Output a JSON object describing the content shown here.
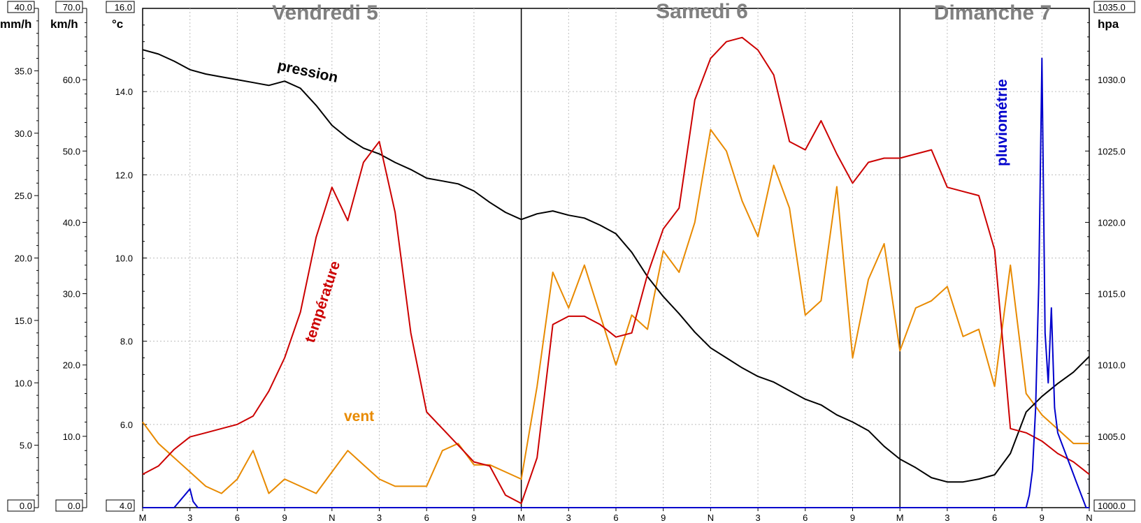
{
  "chart_data": {
    "type": "line",
    "title": "",
    "days": [
      "Vendredi 5",
      "Samedi 6",
      "Dimanche 7"
    ],
    "x_ticks": [
      "M",
      "3",
      "6",
      "9",
      "N",
      "3",
      "6",
      "9",
      "M",
      "3",
      "6",
      "9",
      "N",
      "3",
      "6",
      "9",
      "M",
      "3",
      "6",
      "9",
      "N"
    ],
    "x_hours_range": [
      0,
      60
    ],
    "axes": {
      "rain": {
        "unit": "mm/h",
        "range": [
          0,
          40
        ],
        "ticks": [
          "40.0",
          "35.0",
          "30.0",
          "25.0",
          "20.0",
          "15.0",
          "10.0",
          "5.0",
          "0.0"
        ]
      },
      "wind": {
        "unit": "km/h",
        "range": [
          0,
          70
        ],
        "ticks": [
          "70.0",
          "60.0",
          "50.0",
          "40.0",
          "30.0",
          "20.0",
          "10.0",
          "0.0"
        ]
      },
      "temperature": {
        "unit": "°c",
        "range": [
          4,
          16
        ],
        "ticks": [
          "16.0",
          "14.0",
          "12.0",
          "10.0",
          "8.0",
          "6.0",
          "4.0"
        ]
      },
      "pressure": {
        "unit": "hpa",
        "range": [
          1000,
          1035
        ],
        "ticks": [
          "1035.0",
          "1030.0",
          "1025.0",
          "1020.0",
          "1015.0",
          "1010.0",
          "1005.0",
          "1000.0"
        ]
      }
    },
    "series": [
      {
        "name": "pression",
        "axis": "pressure",
        "color": "#000000",
        "x": [
          0,
          1,
          2,
          3,
          4,
          5,
          6,
          7,
          8,
          9,
          10,
          11,
          12,
          13,
          14,
          15,
          16,
          17,
          18,
          19,
          20,
          21,
          22,
          23,
          24,
          25,
          26,
          27,
          28,
          29,
          30,
          31,
          32,
          33,
          34,
          35,
          36,
          37,
          38,
          39,
          40,
          41,
          42,
          43,
          44,
          45,
          46,
          47,
          48,
          49,
          50,
          51,
          52,
          53,
          54,
          55,
          56,
          57,
          58,
          59,
          60
        ],
        "y": [
          1032.1,
          1031.8,
          1031.3,
          1030.7,
          1030.4,
          1030.2,
          1030.0,
          1029.8,
          1029.6,
          1029.9,
          1029.4,
          1028.2,
          1026.8,
          1025.9,
          1025.2,
          1024.8,
          1024.2,
          1023.7,
          1023.1,
          1022.9,
          1022.7,
          1022.2,
          1021.4,
          1020.7,
          1020.2,
          1020.6,
          1020.8,
          1020.5,
          1020.3,
          1019.8,
          1019.2,
          1017.9,
          1016.2,
          1014.8,
          1013.6,
          1012.3,
          1011.2,
          1010.5,
          1009.8,
          1009.2,
          1008.8,
          1008.2,
          1007.6,
          1007.2,
          1006.5,
          1006.0,
          1005.4,
          1004.3,
          1003.4,
          1002.8,
          1002.1,
          1001.8,
          1001.8,
          1002.0,
          1002.3,
          1003.8,
          1006.7,
          1007.8,
          1008.7,
          1009.5,
          1010.6
        ]
      },
      {
        "name": "température",
        "axis": "temperature",
        "color": "#cc0000",
        "x": [
          0,
          1,
          2,
          3,
          4,
          5,
          6,
          7,
          8,
          9,
          10,
          11,
          12,
          13,
          14,
          15,
          16,
          17,
          18,
          19,
          20,
          21,
          22,
          23,
          24,
          25,
          26,
          27,
          28,
          29,
          30,
          31,
          32,
          33,
          34,
          35,
          36,
          37,
          38,
          39,
          40,
          41,
          42,
          43,
          44,
          45,
          46,
          47,
          48,
          49,
          50,
          51,
          52,
          53,
          54,
          55,
          56,
          57,
          58,
          59,
          60
        ],
        "y": [
          4.8,
          5.0,
          5.4,
          5.7,
          5.8,
          5.9,
          6.0,
          6.2,
          6.8,
          7.6,
          8.7,
          10.5,
          11.7,
          10.9,
          12.3,
          12.8,
          11.1,
          8.2,
          6.3,
          5.9,
          5.5,
          5.1,
          5.0,
          4.3,
          4.1,
          5.2,
          8.4,
          8.6,
          8.6,
          8.4,
          8.1,
          8.2,
          9.6,
          10.7,
          11.2,
          13.8,
          14.8,
          15.2,
          15.3,
          15.0,
          14.4,
          12.8,
          12.6,
          13.3,
          12.5,
          11.8,
          12.3,
          12.4,
          12.4,
          12.5,
          12.6,
          11.7,
          11.6,
          11.5,
          10.2,
          5.9,
          5.8,
          5.6,
          5.3,
          5.1,
          4.8
        ]
      },
      {
        "name": "vent",
        "axis": "wind",
        "color": "#e88a00",
        "x": [
          0,
          1,
          2,
          3,
          4,
          5,
          6,
          7,
          8,
          9,
          10,
          11,
          12,
          13,
          14,
          15,
          16,
          17,
          18,
          19,
          20,
          21,
          22,
          23,
          24,
          25,
          26,
          27,
          28,
          29,
          30,
          31,
          32,
          33,
          34,
          35,
          36,
          37,
          38,
          39,
          40,
          41,
          42,
          43,
          44,
          45,
          46,
          47,
          48,
          49,
          50,
          51,
          52,
          53,
          54,
          55,
          56,
          57,
          58,
          59,
          60
        ],
        "y": [
          12,
          9,
          7,
          5,
          3,
          2,
          4,
          8,
          2,
          4,
          3,
          2,
          5,
          8,
          6,
          4,
          3,
          3,
          3,
          8,
          9,
          6,
          6,
          5,
          4,
          17,
          33,
          28,
          34,
          27,
          20,
          27,
          25,
          36,
          33,
          40,
          53,
          50,
          43,
          38,
          48,
          42,
          27,
          29,
          45,
          21,
          32,
          37,
          22,
          28,
          29,
          31,
          24,
          25,
          17,
          34,
          16,
          13,
          11,
          9,
          9
        ]
      },
      {
        "name": "pluviométrie",
        "axis": "rain",
        "color": "#0000cc",
        "x": [
          0,
          2,
          3,
          3.2,
          3.5,
          4,
          10,
          20,
          30,
          40,
          45,
          50,
          55,
          56,
          56.2,
          56.4,
          56.6,
          56.8,
          57,
          57.2,
          57.4,
          57.6,
          57.8,
          58,
          58.3,
          58.6,
          58.9,
          59.2,
          59.5,
          59.8,
          60
        ],
        "y": [
          0,
          0,
          1.5,
          0.5,
          0,
          0,
          0,
          0,
          0,
          0,
          0,
          0,
          0,
          0,
          1.0,
          3.0,
          8.0,
          18.0,
          36.0,
          14.0,
          10.0,
          16.0,
          8.0,
          6.0,
          5.0,
          4.0,
          3.0,
          2.0,
          1.0,
          0,
          0
        ]
      }
    ],
    "series_labels": {
      "pression": "pression",
      "temperature": "température",
      "vent": "vent",
      "pluviometrie": "pluviométrie"
    }
  }
}
